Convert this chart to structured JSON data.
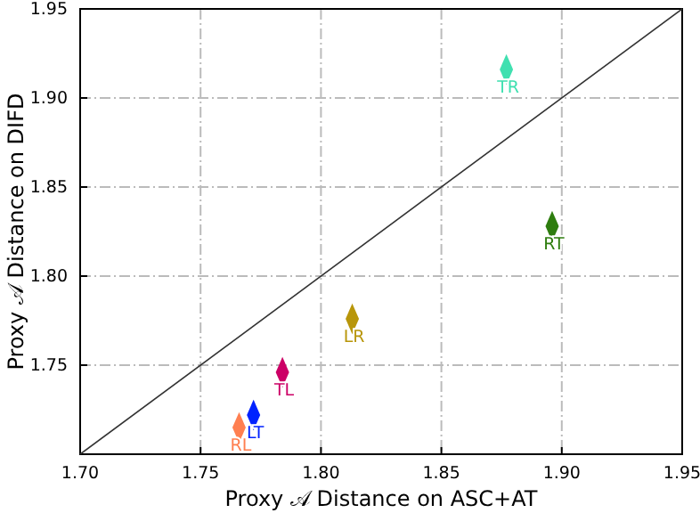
{
  "chart_data": {
    "type": "scatter",
    "xlabel": "Proxy 𝒜 Distance on ASC+AT",
    "ylabel": "Proxy 𝒜 Distance on DIFD",
    "xlim": [
      1.7,
      1.95
    ],
    "ylim": [
      1.7,
      1.95
    ],
    "xticks": [
      {
        "value": 1.7,
        "label": "1.70"
      },
      1.75,
      {
        "value": 1.8,
        "label": "1.80"
      },
      1.85,
      {
        "value": 1.9,
        "label": "1.90"
      },
      1.95
    ],
    "yticks": [
      1.75,
      {
        "value": 1.8,
        "label": "1.80"
      },
      1.85,
      {
        "value": 1.9,
        "label": "1.90"
      },
      1.95
    ],
    "grid": true,
    "marker": "diamond",
    "series": [
      {
        "type": "line",
        "marker": "none",
        "color": "#333333",
        "x": [
          1.7,
          1.95
        ],
        "values": [
          1.7,
          1.95
        ]
      },
      {
        "name": "TR",
        "color": "#40e0b0",
        "x": [
          1.877
        ],
        "values": [
          1.916
        ]
      },
      {
        "name": "RT",
        "color": "#2e7d0f",
        "x": [
          1.896
        ],
        "values": [
          1.828
        ]
      },
      {
        "name": "LR",
        "color": "#b8960a",
        "x": [
          1.813
        ],
        "values": [
          1.776
        ]
      },
      {
        "name": "TL",
        "color": "#cc0066",
        "x": [
          1.784
        ],
        "values": [
          1.746
        ]
      },
      {
        "name": "LT",
        "color": "#0022ff",
        "x": [
          1.772
        ],
        "values": [
          1.722
        ]
      },
      {
        "name": "RL",
        "color": "#ff7f50",
        "x": [
          1.766
        ],
        "values": [
          1.715
        ]
      }
    ]
  }
}
